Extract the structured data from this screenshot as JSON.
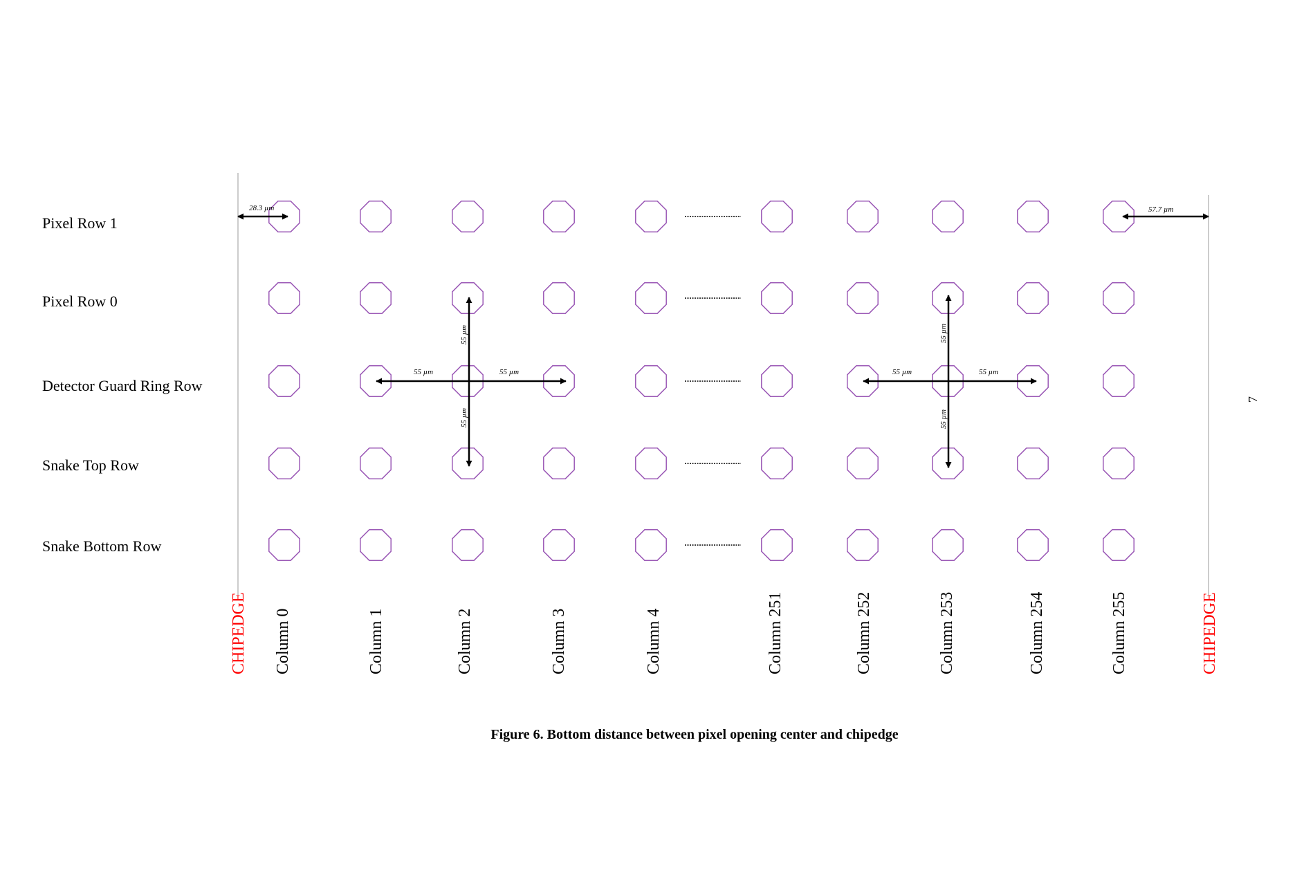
{
  "colors": {
    "pixel": "#9b59b6",
    "chipedge": "#ff0000",
    "edge_line": "#bbbbbb",
    "arrow": "#000000"
  },
  "rows": [
    "Pixel Row 1",
    "Pixel Row 0",
    "Detector Guard Ring Row",
    "Snake Top Row",
    "Snake Bottom Row"
  ],
  "columns_left": [
    "Column 0",
    "Column 1",
    "Column 2",
    "Column 3",
    "Column 4"
  ],
  "columns_right": [
    "Column 251",
    "Column 252",
    "Column 253",
    "Column 254",
    "Column 255"
  ],
  "chipedge_label": "CHIPEDGE",
  "dimensions": {
    "left_edge": "28.3 µm",
    "right_edge": "57.7 µm",
    "pitch": "55 µm"
  },
  "caption": "Figure 6. Bottom distance between pixel opening center and chipedge",
  "page_number": "7"
}
